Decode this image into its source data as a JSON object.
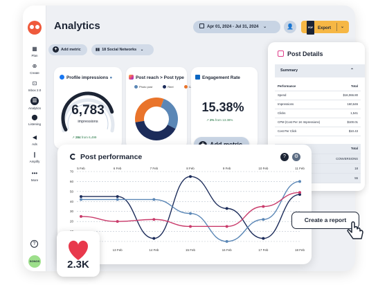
{
  "page": {
    "title": "Analytics"
  },
  "header": {
    "date_range": "Apr 01, 2024 - Jul 31, 2024",
    "export_label": "Export",
    "pdf_badge": "PDF"
  },
  "sidebar": {
    "items": [
      {
        "label": "Plan",
        "icon": "calendar-icon"
      },
      {
        "label": "Create",
        "icon": "plus-circle-icon"
      },
      {
        "label": "Inbox 2.0",
        "icon": "inbox-icon"
      },
      {
        "label": "Analytics",
        "icon": "analytics-icon"
      },
      {
        "label": "Listening",
        "icon": "location-pin-icon"
      },
      {
        "label": "Ads",
        "icon": "megaphone-icon"
      },
      {
        "label": "Amplify",
        "icon": "amplify-icon"
      },
      {
        "label": "More",
        "icon": "more-icon"
      }
    ],
    "help": "?",
    "avatar_label": "SONOS"
  },
  "toolbar": {
    "add_metric": "Add metric",
    "networks": "18 Social Networks"
  },
  "cards": {
    "profile": {
      "title": "Profile impressions",
      "value": "6,783",
      "unit": "impressions",
      "delta": "284",
      "delta_text": "from 6,499",
      "gauge_fraction": 0.82
    },
    "reach": {
      "title": "Post reach > Post type",
      "legend": [
        "Photo post",
        "Reel",
        "Carousel"
      ]
    },
    "engagement": {
      "title": "Engagement Rate",
      "value": "15.38%",
      "delta": "2%",
      "delta_text": "from 13.38%",
      "add_metric": "Add metric"
    }
  },
  "post_details": {
    "title": "Post Details",
    "summary_label": "Summary",
    "headers": [
      "Performance",
      "Total"
    ],
    "rows": [
      {
        "label": "Spend",
        "value": "$16,066.80"
      },
      {
        "label": "Impressions",
        "value": "160,646"
      },
      {
        "label": "Clicks",
        "value": "1,541"
      },
      {
        "label": "CPM (Cost Per 1K Impressions)",
        "value": "$100.01"
      },
      {
        "label": "Cost Per Click",
        "value": "$10.43"
      }
    ],
    "sub_header": "Total",
    "sub_label": "CONVERSIONS",
    "sub_rows": [
      "18",
      "55"
    ]
  },
  "performance": {
    "title": "Post performance",
    "create_report": "Create a report"
  },
  "likes": {
    "value": "2.3K"
  },
  "colors": {
    "accent": "#f6b745",
    "navy": "#1c2434",
    "orange": "#e9742b",
    "steel": "#5b87b6",
    "pink": "#c93b6b",
    "teal": "#2e8c9b"
  },
  "chart_data": [
    {
      "type": "pie",
      "title": "Post reach > Post type",
      "categories": [
        "Photo post",
        "Reel",
        "Carousel"
      ],
      "values": [
        27,
        40,
        33
      ],
      "colors": [
        "#5b87b6",
        "#1c2c5a",
        "#e9742b"
      ]
    },
    {
      "type": "line",
      "title": "Post performance",
      "x_top": [
        "5 Feb",
        "6 Feb",
        "7 Feb",
        "8 Feb",
        "9 Feb",
        "10 Feb",
        "11 Feb"
      ],
      "x_bottom": [
        "12 Feb",
        "13 Feb",
        "14 Feb",
        "15 Feb",
        "16 Feb",
        "17 Feb",
        "18 Feb"
      ],
      "ylim": [
        0,
        70
      ],
      "yticks": [
        0,
        10,
        20,
        30,
        40,
        50,
        60,
        70
      ],
      "series": [
        {
          "color": "#1c2c5a",
          "values": [
            45,
            45,
            3,
            65,
            33,
            3,
            47
          ]
        },
        {
          "color": "#5b87b6",
          "values": [
            42,
            42,
            42,
            28,
            0,
            22,
            60
          ]
        },
        {
          "color": "#c93b6b",
          "values": [
            25,
            20,
            22,
            15,
            15,
            35,
            49
          ]
        }
      ]
    }
  ]
}
